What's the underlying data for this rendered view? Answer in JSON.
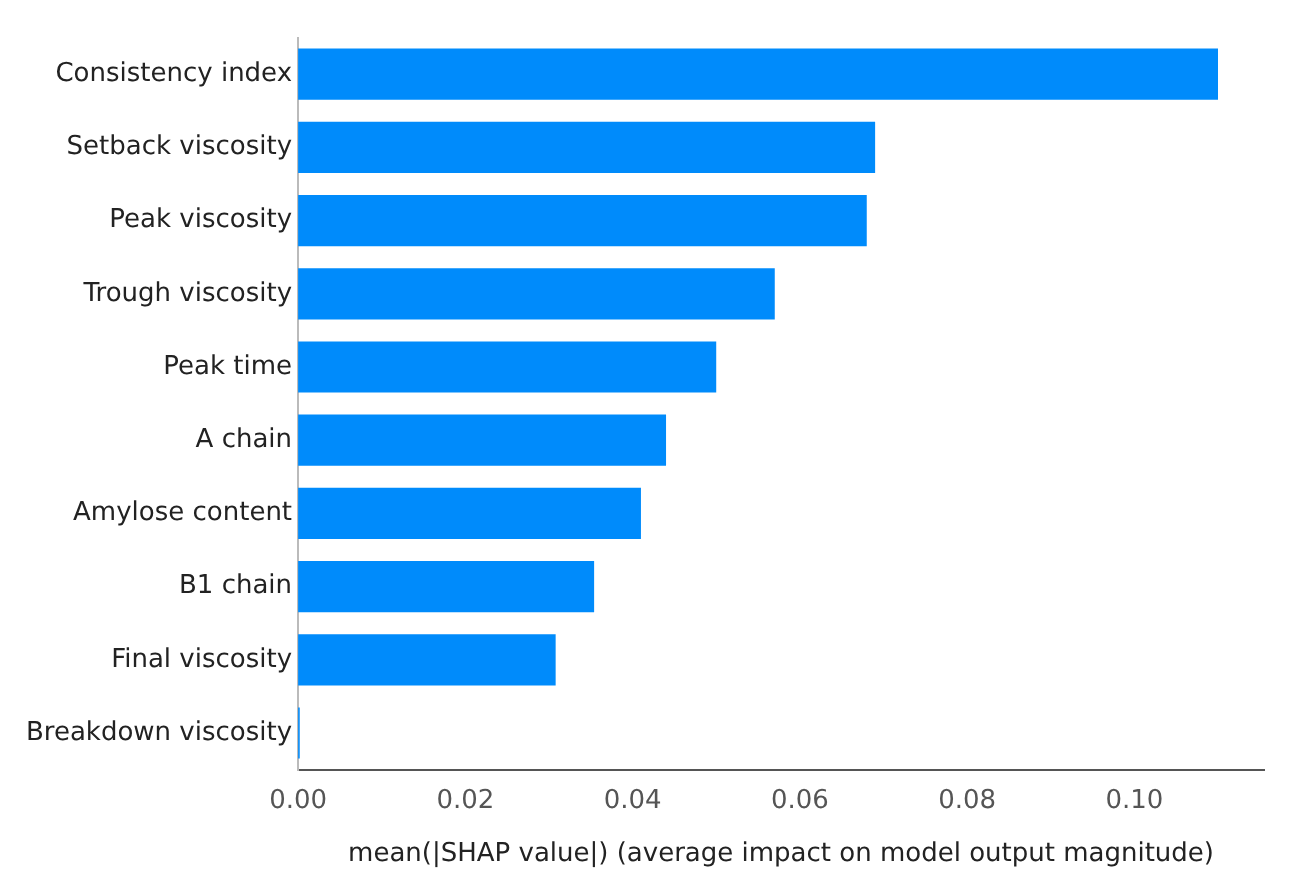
{
  "chart_data": {
    "type": "bar",
    "orientation": "horizontal",
    "xlabel": "mean(|SHAP value|) (average impact on model output magnitude)",
    "categories": [
      "Consistency index",
      "Setback viscosity",
      "Peak viscosity",
      "Trough viscosity",
      "Peak time",
      "A chain",
      "Amylose content",
      "B1 chain",
      "Final viscosity",
      "Breakdown viscosity"
    ],
    "values": [
      0.11,
      0.069,
      0.068,
      0.057,
      0.05,
      0.044,
      0.041,
      0.0354,
      0.0308,
      0.0002
    ],
    "color": "#008bfb",
    "xlim": [
      0,
      0.1155
    ],
    "xticks": [
      {
        "value": 0,
        "label": "0.00"
      },
      {
        "value": 0.02,
        "label": "0.02"
      },
      {
        "value": 0.04,
        "label": "0.04"
      },
      {
        "value": 0.06,
        "label": "0.06"
      },
      {
        "value": 0.08,
        "label": "0.08"
      },
      {
        "value": 0.1,
        "label": "0.10"
      }
    ],
    "grid": false,
    "legend": false
  }
}
